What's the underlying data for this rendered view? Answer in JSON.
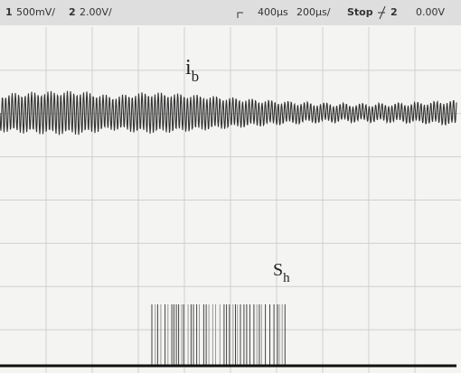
{
  "status_bar": {
    "channel1": "1",
    "channel1_scale": "500mV/",
    "channel2": "2",
    "channel2_scale": "2.00V/",
    "delay": "400µs",
    "timebase": "200µs/",
    "run_state": "Stop",
    "trigger_channel": "2",
    "trigger_level": "0.00V"
  },
  "traces": [
    {
      "label": "i",
      "label_sub": "b"
    },
    {
      "label": "S",
      "label_sub": "h"
    }
  ]
}
